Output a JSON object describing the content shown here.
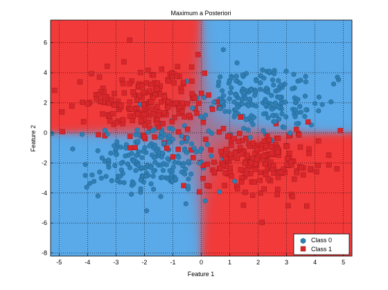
{
  "chart_data": {
    "type": "scatter",
    "title": "Maximum a Posteriori",
    "xlabel": "Feature 1",
    "ylabel": "Feature 2",
    "xlim": [
      -5.3,
      5.3
    ],
    "ylim": [
      -8.2,
      7.5
    ],
    "xticks": [
      -5,
      -4,
      -3,
      -2,
      -1,
      0,
      1,
      2,
      3,
      4,
      5
    ],
    "yticks": [
      -8,
      -6,
      -4,
      -2,
      0,
      2,
      4,
      6
    ],
    "grid": true,
    "legend_position": "bottom-right",
    "background": "decision-region heatmap (XOR pattern: Class 1 red in top-left and bottom-right quadrants, Class 0 blue in top-right and bottom-left quadrants)",
    "colors": {
      "class0_region": "#5aa9e8",
      "class1_region": "#f23a3a",
      "class0_marker": "#2f7fb5",
      "class1_marker": "#d9262b"
    },
    "series": [
      {
        "name": "Class 0",
        "marker": "circle",
        "clusters": [
          {
            "center": [
              2.0,
              2.3
            ],
            "spread": [
              1.1,
              1.1
            ],
            "count": 200
          },
          {
            "center": [
              -2.0,
              -2.0
            ],
            "spread": [
              1.1,
              1.2
            ],
            "count": 200
          }
        ]
      },
      {
        "name": "Class 1",
        "marker": "square",
        "clusters": [
          {
            "center": [
              -2.0,
              2.0
            ],
            "spread": [
              1.1,
              1.2
            ],
            "count": 200
          },
          {
            "center": [
              2.0,
              -2.0
            ],
            "spread": [
              1.1,
              1.2
            ],
            "count": 200
          }
        ]
      }
    ]
  }
}
